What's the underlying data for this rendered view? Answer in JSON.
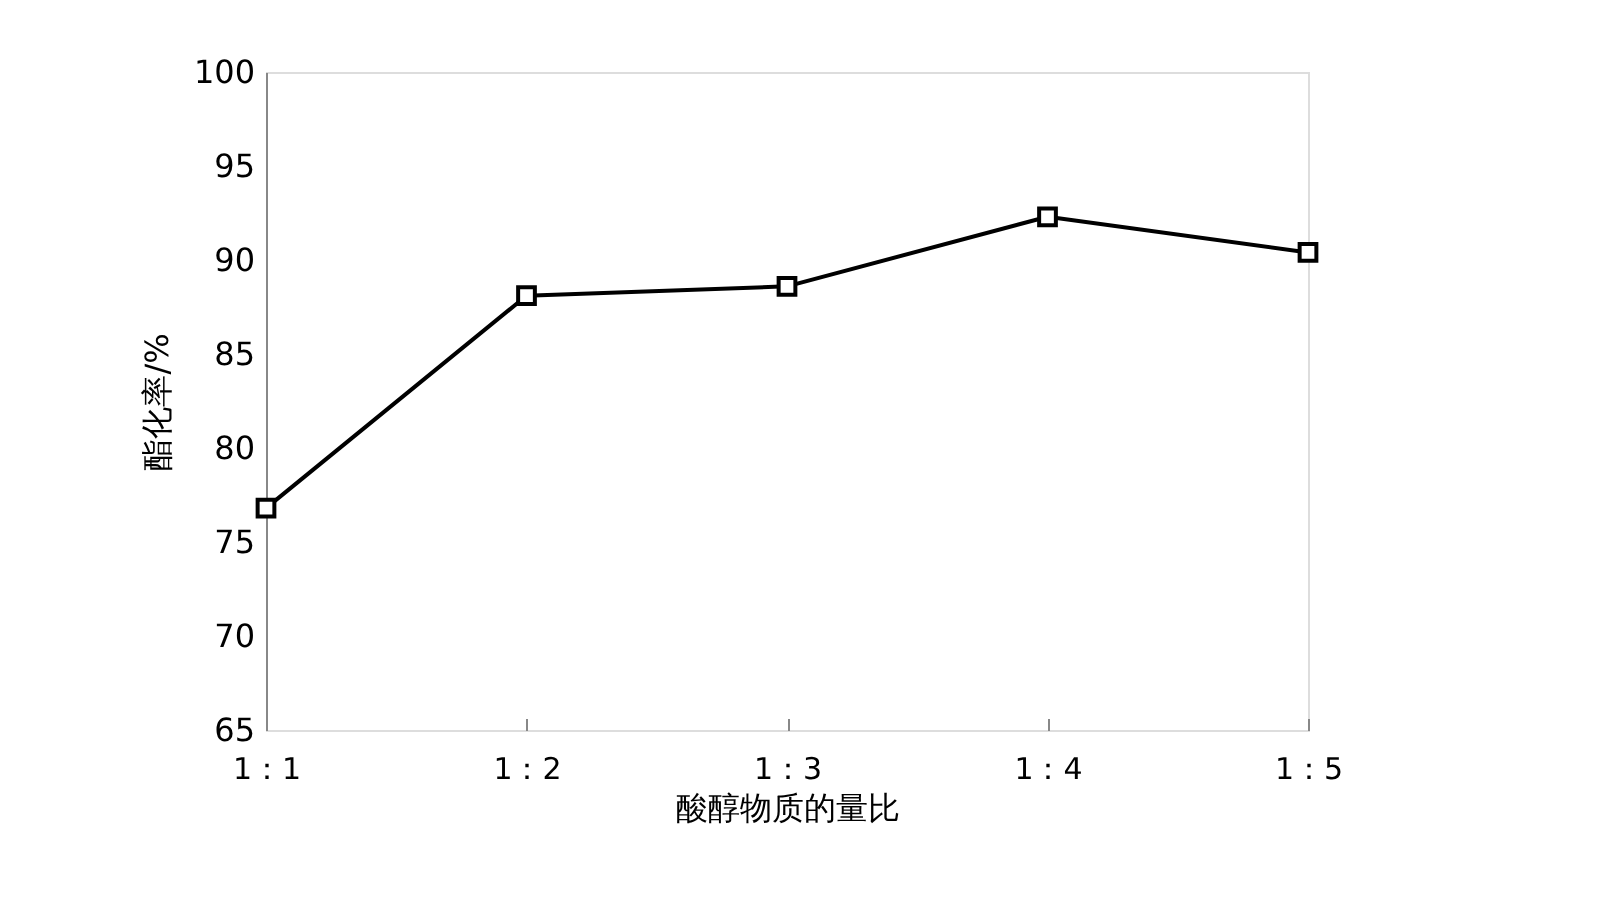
{
  "chart_data": {
    "type": "line",
    "xlabel": "酸醇物质的量比",
    "ylabel": "酯化率/%",
    "categories": [
      "1：1",
      "1：2",
      "1：3",
      "1：4",
      "1：5"
    ],
    "series": [
      {
        "color": "#000000",
        "values": [
          76.8,
          88.1,
          88.6,
          92.3,
          90.4
        ]
      }
    ],
    "ylim": [
      65,
      100
    ],
    "yticks": [
      65,
      70,
      75,
      80,
      85,
      90,
      95,
      100
    ],
    "marker": "square",
    "line_style": "solid",
    "grid": false,
    "legend": false
  }
}
